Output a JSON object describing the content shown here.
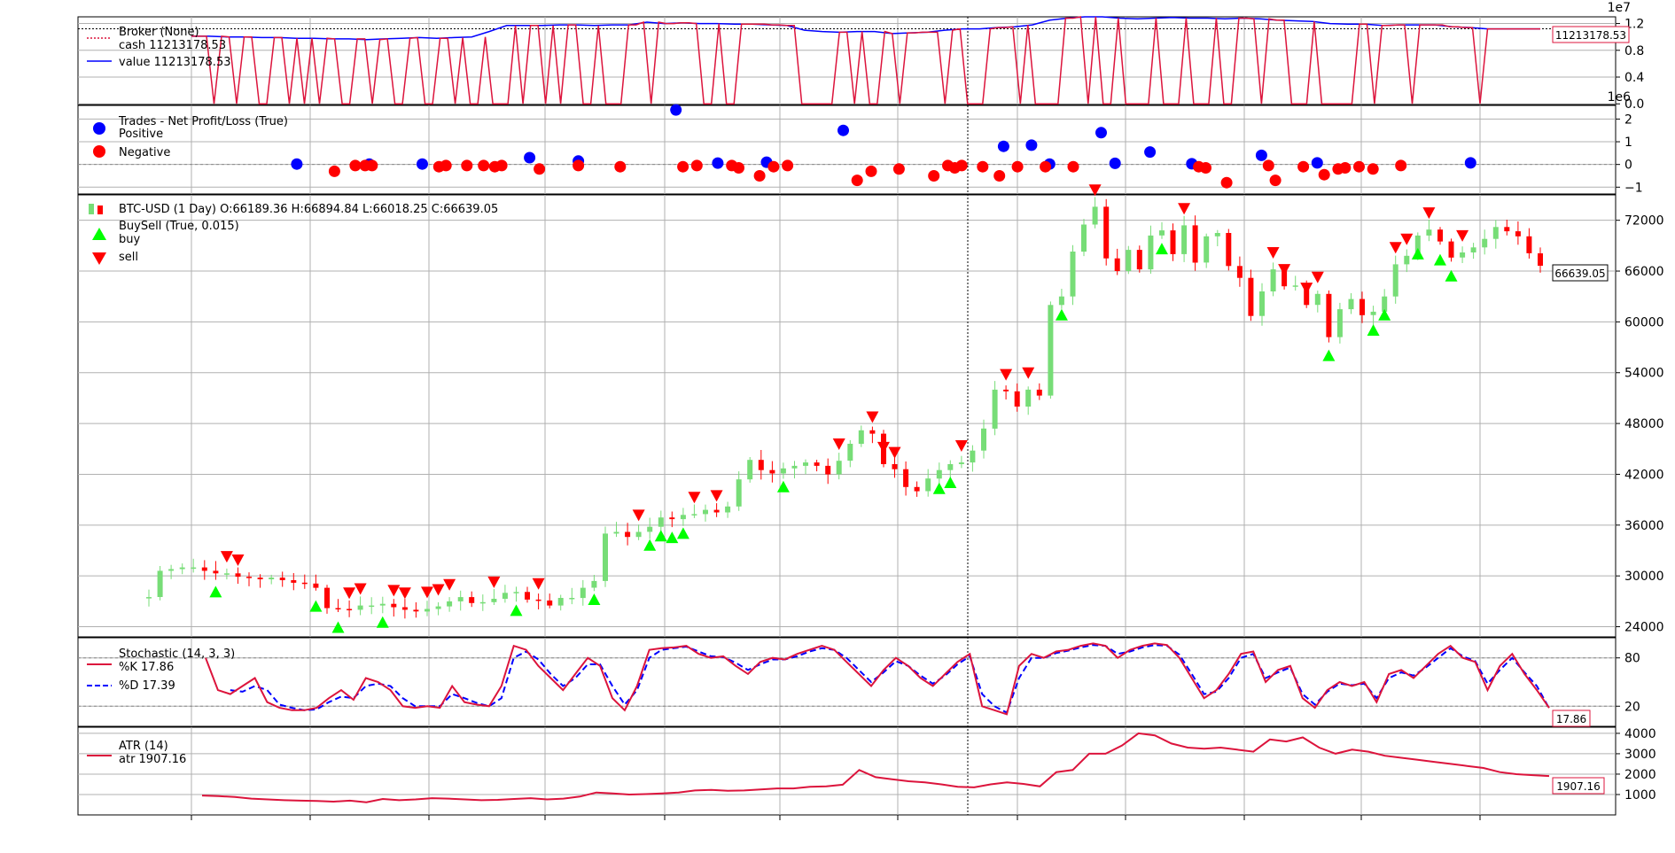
{
  "chart_data": {
    "type": "line",
    "scale_labels": {
      "broker": "1e7",
      "trades": "1e6"
    },
    "panels": {
      "broker": {
        "legend_title": "Broker (None)",
        "cash_label": "cash 11213178.53",
        "value_label": "value 11213178.53",
        "last_value_label": "11213178.53",
        "ticks": [
          "1.2",
          "0.8",
          "0.4",
          "0.0"
        ],
        "tick_values": [
          12000000,
          8000000,
          4000000,
          0
        ],
        "ylim": [
          -100000,
          13000000
        ],
        "value_series": [
          10100000,
          10100000,
          10000000,
          10000000,
          9900000,
          9900000,
          9800000,
          9800000,
          9700000,
          9700000,
          9600000,
          9700000,
          9800000,
          9900000,
          9800000,
          9900000,
          10000000,
          10800000,
          11700000,
          11700000,
          11700000,
          11800000,
          11800000,
          11700000,
          11800000,
          11800000,
          12200000,
          12000000,
          12100000,
          12000000,
          12000000,
          11900000,
          11900000,
          11800000,
          11700000,
          11000000,
          10800000,
          10700000,
          10800000,
          10800000,
          10500000,
          10600000,
          10700000,
          11000000,
          11200000,
          11200000,
          11400000,
          11500000,
          11800000,
          12500000,
          12800000,
          13000000,
          13000000,
          12800000,
          12700000,
          12800000,
          12900000,
          12800000,
          12800000,
          12700000,
          12800000,
          12700000,
          12500000,
          12400000,
          12300000,
          12000000,
          11900000,
          11900000,
          11700000,
          11800000,
          11800000,
          11800000,
          11500000,
          11400000,
          11200000,
          11200000,
          11200000,
          11200000
        ],
        "cash_series": [
          null,
          null,
          null,
          null,
          null,
          null,
          null,
          null,
          null,
          null,
          null,
          null,
          null,
          null,
          null,
          null,
          null,
          null,
          null,
          null,
          null,
          null,
          null,
          null,
          null,
          null,
          null,
          null,
          null,
          null,
          null,
          null,
          null,
          null,
          null,
          null,
          null,
          null,
          null,
          null,
          null,
          null,
          null,
          null,
          null,
          null,
          null,
          null,
          null,
          null,
          null,
          null,
          null,
          null,
          null,
          null,
          null,
          null,
          null,
          null,
          null,
          null,
          null,
          null,
          null,
          null,
          null,
          null,
          null,
          null,
          null,
          null,
          null,
          null,
          null,
          null,
          null,
          null
        ],
        "cash_baseline": 11213178.53
      },
      "trades": {
        "legend_title": "Trades - Net Profit/Loss (True)",
        "positive_label": "Positive",
        "negative_label": "Negative",
        "ticks": [
          "2",
          "1",
          "0",
          "−1"
        ],
        "tick_values": [
          2000000,
          1000000,
          0,
          -1000000
        ],
        "ylim": [
          -1300000,
          2600000
        ],
        "positive_color": "#0000ff",
        "negative_color": "#ff0000",
        "points": [
          [
            0.108,
            0.02
          ],
          [
            0.16,
            0.02
          ],
          [
            0.198,
            0.02
          ],
          [
            0.275,
            0.3
          ],
          [
            0.31,
            0.15
          ],
          [
            0.38,
            2.4
          ],
          [
            0.41,
            0.06
          ],
          [
            0.445,
            0.1
          ],
          [
            0.5,
            1.5
          ],
          [
            0.615,
            0.8
          ],
          [
            0.635,
            0.85
          ],
          [
            0.648,
            0.02
          ],
          [
            0.685,
            1.4
          ],
          [
            0.695,
            0.05
          ],
          [
            0.72,
            0.55
          ],
          [
            0.75,
            0.03
          ],
          [
            0.8,
            0.4
          ],
          [
            0.84,
            0.07
          ],
          [
            0.95,
            0.07
          ],
          [
            0.135,
            -0.3
          ],
          [
            0.15,
            -0.05
          ],
          [
            0.157,
            -0.05
          ],
          [
            0.162,
            -0.05
          ],
          [
            0.21,
            -0.1
          ],
          [
            0.215,
            -0.05
          ],
          [
            0.23,
            -0.05
          ],
          [
            0.242,
            -0.05
          ],
          [
            0.25,
            -0.1
          ],
          [
            0.255,
            -0.05
          ],
          [
            0.282,
            -0.2
          ],
          [
            0.31,
            -0.05
          ],
          [
            0.34,
            -0.1
          ],
          [
            0.385,
            -0.1
          ],
          [
            0.395,
            -0.05
          ],
          [
            0.42,
            -0.05
          ],
          [
            0.425,
            -0.15
          ],
          [
            0.44,
            -0.5
          ],
          [
            0.45,
            -0.1
          ],
          [
            0.46,
            -0.05
          ],
          [
            0.51,
            -0.7
          ],
          [
            0.52,
            -0.3
          ],
          [
            0.54,
            -0.2
          ],
          [
            0.565,
            -0.5
          ],
          [
            0.575,
            -0.05
          ],
          [
            0.58,
            -0.15
          ],
          [
            0.585,
            -0.05
          ],
          [
            0.6,
            -0.1
          ],
          [
            0.612,
            -0.5
          ],
          [
            0.625,
            -0.1
          ],
          [
            0.645,
            -0.1
          ],
          [
            0.665,
            -0.1
          ],
          [
            0.755,
            -0.1
          ],
          [
            0.76,
            -0.15
          ],
          [
            0.775,
            -0.8
          ],
          [
            0.805,
            -0.05
          ],
          [
            0.81,
            -0.7
          ],
          [
            0.83,
            -0.1
          ],
          [
            0.845,
            -0.45
          ],
          [
            0.855,
            -0.2
          ],
          [
            0.86,
            -0.15
          ],
          [
            0.87,
            -0.1
          ],
          [
            0.88,
            -0.2
          ],
          [
            0.9,
            -0.05
          ]
        ]
      },
      "price": {
        "legend_title": "BTC-USD (1 Day) O:66189.36 H:66894.84 L:66018.25 C:66639.05",
        "buysell_label": "BuySell (True, 0.015)",
        "buy_label": "buy",
        "sell_label": "sell",
        "last_value_label": "66639.05",
        "ticks": [
          "72000",
          "66000",
          "60000",
          "54000",
          "48000",
          "42000",
          "36000",
          "30000",
          "24000"
        ],
        "tick_values": [
          72000,
          66000,
          60000,
          54000,
          48000,
          42000,
          36000,
          30000,
          24000
        ],
        "ylim": [
          22800,
          75000
        ],
        "up_color": "#77dd77",
        "down_color": "#ff0000",
        "close_series": [
          27500,
          30600,
          30800,
          31000,
          31000,
          30600,
          30300,
          30300,
          29900,
          29800,
          29600,
          29800,
          29500,
          29200,
          29100,
          28600,
          26200,
          26100,
          26000,
          26500,
          26500,
          26700,
          26300,
          26000,
          25800,
          26100,
          26400,
          27000,
          27500,
          26800,
          26900,
          27300,
          28000,
          28100,
          27200,
          27100,
          26500,
          27400,
          27400,
          28600,
          29400,
          35000,
          35200,
          34600,
          35200,
          35800,
          36900,
          36700,
          37200,
          37300,
          37800,
          37500,
          38200,
          41400,
          43700,
          42500,
          42100,
          42700,
          43000,
          43400,
          43000,
          42000,
          43600,
          45600,
          47200,
          46800,
          43200,
          42600,
          40500,
          40000,
          41500,
          42500,
          43200,
          43400,
          44800,
          47400,
          52000,
          51800,
          50000,
          52000,
          51300,
          62000,
          63000,
          68300,
          71500,
          73600,
          67500,
          66000,
          68500,
          66200,
          70200,
          70800,
          68000,
          71400,
          67000,
          70100,
          70500,
          66600,
          65200,
          60700,
          63600,
          66200,
          64200,
          64300,
          62000,
          63300,
          58200,
          61500,
          62700,
          60800,
          61200,
          63000,
          66800,
          67800,
          70200,
          70900,
          69500,
          67600,
          68200,
          68800,
          69800,
          71200,
          70700,
          70100,
          68100,
          66639
        ]
      },
      "stochastic": {
        "legend_title": "Stochastic (14, 3, 3)",
        "k_label": "%K 17.86",
        "d_label": "%D 17.39",
        "last_value_label": "17.86",
        "ticks": [
          "80",
          "20"
        ],
        "tick_values": [
          80,
          20
        ],
        "ylim": [
          -5,
          105
        ],
        "k_series": [
          80,
          40,
          35,
          45,
          55,
          25,
          18,
          15,
          15,
          18,
          30,
          40,
          28,
          55,
          50,
          40,
          20,
          18,
          20,
          18,
          45,
          25,
          22,
          20,
          45,
          95,
          90,
          70,
          55,
          40,
          60,
          80,
          70,
          30,
          15,
          45,
          90,
          92,
          93,
          95,
          85,
          80,
          82,
          70,
          60,
          75,
          80,
          78,
          85,
          90,
          95,
          90,
          75,
          60,
          45,
          65,
          80,
          70,
          55,
          45,
          60,
          75,
          85,
          20,
          15,
          10,
          70,
          85,
          80,
          88,
          90,
          95,
          98,
          95,
          80,
          90,
          95,
          98,
          96,
          80,
          55,
          30,
          40,
          60,
          85,
          88,
          50,
          65,
          70,
          30,
          18,
          40,
          50,
          45,
          50,
          25,
          60,
          65,
          55,
          70,
          85,
          95,
          80,
          75,
          40,
          70,
          85,
          60,
          40,
          17.86
        ],
        "d_series": [
          null,
          null,
          40,
          38,
          45,
          40,
          22,
          18,
          15,
          16,
          25,
          32,
          30,
          45,
          48,
          45,
          30,
          20,
          20,
          20,
          35,
          30,
          24,
          20,
          30,
          80,
          88,
          78,
          60,
          45,
          55,
          72,
          72,
          45,
          22,
          40,
          80,
          90,
          92,
          94,
          88,
          82,
          81,
          74,
          65,
          72,
          78,
          78,
          82,
          88,
          92,
          90,
          80,
          65,
          50,
          62,
          76,
          70,
          58,
          48,
          58,
          72,
          82,
          35,
          20,
          12,
          55,
          80,
          80,
          86,
          89,
          93,
          96,
          95,
          85,
          88,
          93,
          96,
          95,
          84,
          60,
          35,
          38,
          55,
          80,
          85,
          55,
          62,
          68,
          35,
          22,
          38,
          48,
          46,
          48,
          30,
          55,
          62,
          58,
          68,
          80,
          92,
          82,
          76,
          48,
          65,
          80,
          62,
          45,
          17.39
        ]
      },
      "atr": {
        "legend_title": "ATR (14)",
        "atr_label": "atr 1907.16",
        "last_value_label": "1907.16",
        "ticks": [
          "4000",
          "3000",
          "2000",
          "1000"
        ],
        "tick_values": [
          4000,
          3000,
          2000,
          1000
        ],
        "ylim": [
          0,
          4300
        ],
        "series": [
          950,
          920,
          880,
          800,
          760,
          720,
          700,
          680,
          650,
          700,
          620,
          780,
          720,
          760,
          820,
          800,
          760,
          720,
          740,
          780,
          820,
          760,
          800,
          900,
          1100,
          1050,
          1000,
          1020,
          1050,
          1100,
          1200,
          1230,
          1180,
          1200,
          1250,
          1300,
          1300,
          1380,
          1400,
          1480,
          2200,
          1850,
          1750,
          1650,
          1600,
          1500,
          1380,
          1350,
          1500,
          1600,
          1520,
          1400,
          2100,
          2200,
          3000,
          3000,
          3400,
          4000,
          3900,
          3500,
          3300,
          3250,
          3300,
          3200,
          3100,
          3700,
          3600,
          3800,
          3300,
          3000,
          3200,
          3100,
          2900,
          2800,
          2700,
          2600,
          2500,
          2400,
          2300,
          2100,
          2000,
          1950,
          1907.16
        ]
      }
    },
    "colors": {
      "cash": "#dc143c",
      "value": "#0000ff",
      "d_line": "#0000ff",
      "grid": "#b0b0b0",
      "axes": "#000000"
    }
  }
}
